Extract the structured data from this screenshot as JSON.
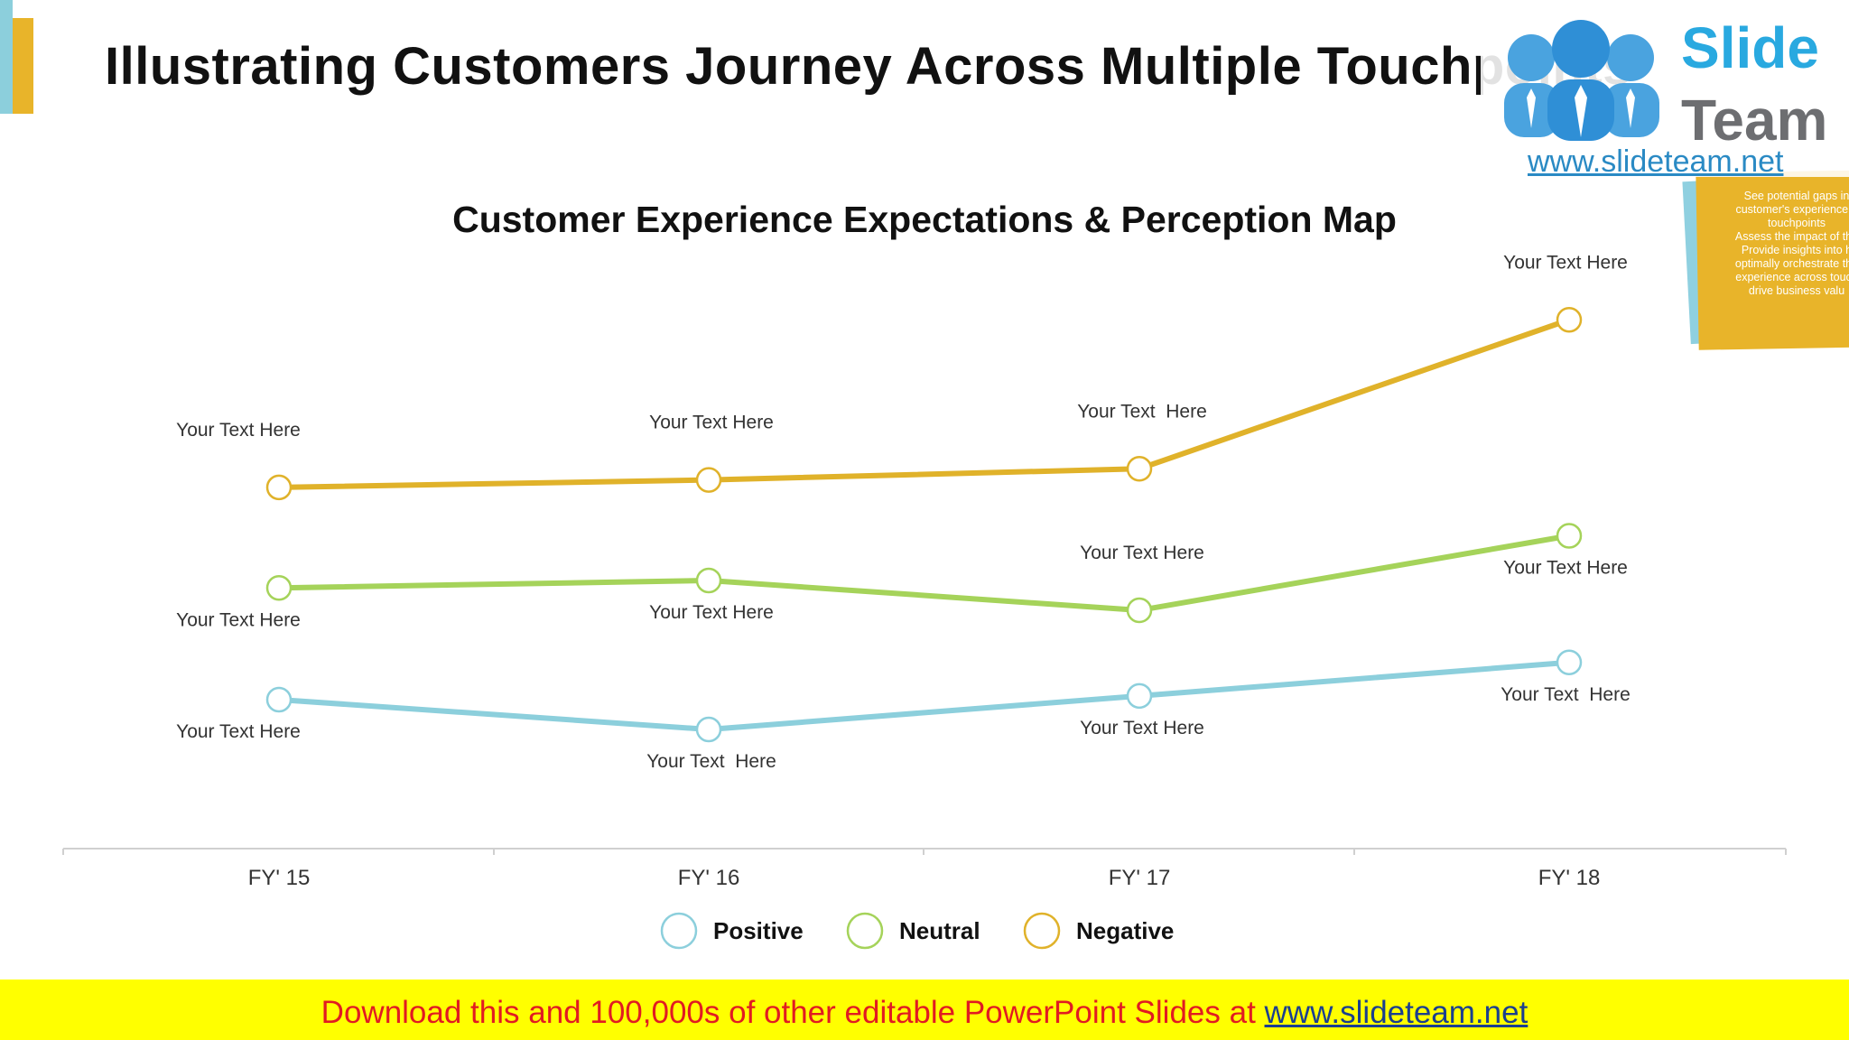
{
  "slide": {
    "title": "Illustrating Customers Journey Across Multiple Touchpoints"
  },
  "logo": {
    "brand_top": "Slide",
    "brand_bottom": "Team",
    "url": "www.slideteam.net"
  },
  "note": {
    "lines": [
      "See potential gaps in",
      "customer's experience b",
      "touchpoints",
      "Assess the impact of the",
      "Provide insights into h",
      "optimally orchestrate the",
      "experience across touch",
      "drive business valu"
    ]
  },
  "banner": {
    "text": "Download this and 100,000s of other editable PowerPoint Slides at ",
    "link": "www.slideteam.net"
  },
  "colors": {
    "positive": "#8ccfdc",
    "neutral": "#a5d35a",
    "negative": "#e0b22a",
    "accent_gold": "#e8b42a",
    "accent_blue": "#8ccfdc"
  },
  "chart_data": {
    "type": "line",
    "title": "Customer Experience Expectations & Perception Map",
    "categories": [
      "FY' 15",
      "FY' 16",
      "FY' 17",
      "FY' 18"
    ],
    "series": [
      {
        "name": "Positive",
        "color": "#8ccfdc",
        "values": [
          4.0,
          3.2,
          4.1,
          5.0
        ],
        "labels": [
          "Your Text Here",
          "Your Text  Here",
          "Your Text Here",
          "Your Text  Here"
        ],
        "label_position": "below"
      },
      {
        "name": "Neutral",
        "color": "#a5d35a",
        "values": [
          7.0,
          7.2,
          6.4,
          8.4
        ],
        "labels": [
          "Your Text Here",
          "Your Text Here",
          "Your Text Here",
          "Your Text Here"
        ],
        "label_position": [
          "below",
          "below",
          "above",
          "below"
        ]
      },
      {
        "name": "Negative",
        "color": "#e0b22a",
        "values": [
          9.7,
          9.9,
          10.2,
          14.2
        ],
        "labels": [
          "Your Text Here",
          "Your Text Here",
          "Your Text  Here",
          "Your Text Here"
        ],
        "label_position": "above"
      }
    ],
    "ylim": [
      0,
      16
    ],
    "grid": false,
    "legend": "bottom-center"
  }
}
